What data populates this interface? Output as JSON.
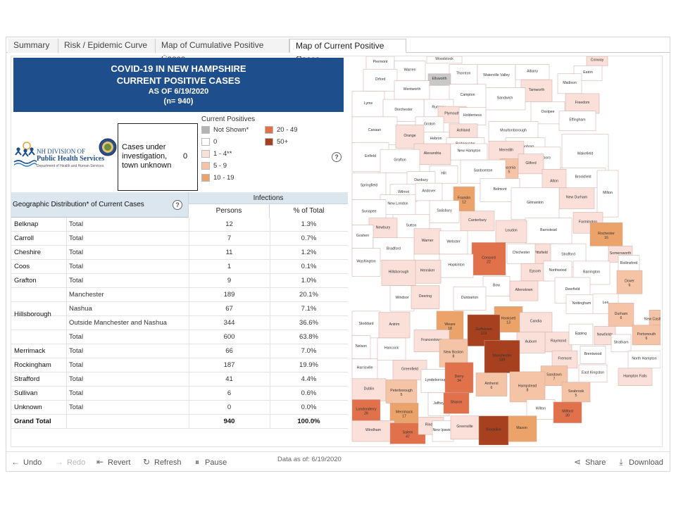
{
  "tabs": [
    "Summary",
    "Risk / Epidemic Curve",
    "Map of Cumulative Positive Cases",
    "Map of Current Positive Cases"
  ],
  "active_tab": 3,
  "title": {
    "line1": "COVID-19 IN NEW HAMPSHIRE",
    "line2": "CURRENT POSITIVE CASES",
    "line3": "AS OF 6/19/2020",
    "line4": "(n= 940)"
  },
  "logo": {
    "line1": "NH DIVISION OF",
    "line2": "Public Health Services",
    "line3": "Department of Health and Human Services"
  },
  "unknown_box": {
    "label": "Cases under investigation, town unknown",
    "value": "0"
  },
  "legend": {
    "title": "Current Positives",
    "items": [
      {
        "label": "Not Shown*",
        "color": "#b3b3b3"
      },
      {
        "label": "0",
        "color": "#ffffff"
      },
      {
        "label": "1 - 4**",
        "color": "#fbe0da"
      },
      {
        "label": "5 - 9",
        "color": "#f5c4a7"
      },
      {
        "label": "10 - 19",
        "color": "#eba36a"
      },
      {
        "label": "20 - 49",
        "color": "#e0714b"
      },
      {
        "label": "50+",
        "color": "#a6401e"
      }
    ]
  },
  "table": {
    "group_header": "Infections",
    "geo_header": "Geographic Distribution* of Current Cases",
    "col_persons": "Persons",
    "col_pct": "% of Total",
    "rows": [
      {
        "county": "Belknap",
        "sub": "Total",
        "persons": "12",
        "pct": "1.3%"
      },
      {
        "county": "Carroll",
        "sub": "Total",
        "persons": "7",
        "pct": "0.7%"
      },
      {
        "county": "Cheshire",
        "sub": "Total",
        "persons": "11",
        "pct": "1.2%"
      },
      {
        "county": "Coos",
        "sub": "Total",
        "persons": "1",
        "pct": "0.1%"
      },
      {
        "county": "Grafton",
        "sub": "Total",
        "persons": "9",
        "pct": "1.0%"
      },
      {
        "county": "",
        "sub": "Manchester",
        "persons": "189",
        "pct": "20.1%"
      },
      {
        "county": "",
        "sub": "Nashua",
        "persons": "67",
        "pct": "7.1%"
      },
      {
        "county": "",
        "sub": "Outside Manchester and Nashua",
        "persons": "344",
        "pct": "36.6%"
      },
      {
        "county": "",
        "sub": "Total",
        "persons": "600",
        "pct": "63.8%"
      },
      {
        "county": "Merrimack",
        "sub": "Total",
        "persons": "66",
        "pct": "7.0%"
      },
      {
        "county": "Rockingham",
        "sub": "Total",
        "persons": "187",
        "pct": "19.9%"
      },
      {
        "county": "Strafford",
        "sub": "Total",
        "persons": "41",
        "pct": "4.4%"
      },
      {
        "county": "Sullivan",
        "sub": "Total",
        "persons": "6",
        "pct": "0.6%"
      },
      {
        "county": "Unknown",
        "sub": "Total",
        "persons": "0",
        "pct": "0.0%"
      },
      {
        "county": "Grand Total",
        "sub": "",
        "persons": "940",
        "pct": "100.0%"
      }
    ],
    "hillsborough_label": "Hillsborough"
  },
  "data_as_of": "Data as of: 6/19/2020",
  "map": {
    "towns": [
      {
        "name": "Woodstock",
        "cases": ""
      },
      {
        "name": "Conway",
        "cases": ""
      },
      {
        "name": "Piermont",
        "cases": ""
      },
      {
        "name": "Warren",
        "cases": ""
      },
      {
        "name": "Thornton",
        "cases": ""
      },
      {
        "name": "Waterville Valley",
        "cases": ""
      },
      {
        "name": "Albany",
        "cases": ""
      },
      {
        "name": "Eaton",
        "cases": ""
      },
      {
        "name": "Orford",
        "cases": ""
      },
      {
        "name": "Ellsworth",
        "cases": ""
      },
      {
        "name": "Madison",
        "cases": ""
      },
      {
        "name": "Wentworth",
        "cases": ""
      },
      {
        "name": "Tamworth",
        "cases": ""
      },
      {
        "name": "Sandwich",
        "cases": ""
      },
      {
        "name": "Campton",
        "cases": ""
      },
      {
        "name": "Freedom",
        "cases": ""
      },
      {
        "name": "Rumney",
        "cases": ""
      },
      {
        "name": "Lyme",
        "cases": ""
      },
      {
        "name": "Dorchester",
        "cases": ""
      },
      {
        "name": "Plymouth",
        "cases": ""
      },
      {
        "name": "Holderness",
        "cases": ""
      },
      {
        "name": "Ossipee",
        "cases": ""
      },
      {
        "name": "Effingham",
        "cases": ""
      },
      {
        "name": "Groton",
        "cases": ""
      },
      {
        "name": "Ashland",
        "cases": ""
      },
      {
        "name": "Moultonborough",
        "cases": ""
      },
      {
        "name": "Hebron",
        "cases": ""
      },
      {
        "name": "Canaan",
        "cases": ""
      },
      {
        "name": "Orange",
        "cases": ""
      },
      {
        "name": "Bridgewater",
        "cases": ""
      },
      {
        "name": "Tuftonboro",
        "cases": ""
      },
      {
        "name": "Alexandria",
        "cases": ""
      },
      {
        "name": "New Hampton",
        "cases": ""
      },
      {
        "name": "Meredith",
        "cases": ""
      },
      {
        "name": "Wolfeboro",
        "cases": ""
      },
      {
        "name": "Wakefield",
        "cases": ""
      },
      {
        "name": "Enfield",
        "cases": ""
      },
      {
        "name": "Grafton",
        "cases": ""
      },
      {
        "name": "Laconia",
        "cases": "5"
      },
      {
        "name": "Gilford",
        "cases": ""
      },
      {
        "name": "Brookfield",
        "cases": ""
      },
      {
        "name": "Hill",
        "cases": ""
      },
      {
        "name": "Sanbornton",
        "cases": ""
      },
      {
        "name": "Danbury",
        "cases": ""
      },
      {
        "name": "Alton",
        "cases": ""
      },
      {
        "name": "Springfield",
        "cases": ""
      },
      {
        "name": "Belmont",
        "cases": ""
      },
      {
        "name": "New Durham",
        "cases": ""
      },
      {
        "name": "Wilmot",
        "cases": ""
      },
      {
        "name": "Andover",
        "cases": ""
      },
      {
        "name": "Franklin",
        "cases": "12"
      },
      {
        "name": "Milton",
        "cases": ""
      },
      {
        "name": "Gilmanton",
        "cases": ""
      },
      {
        "name": "New London",
        "cases": ""
      },
      {
        "name": "Sunapee",
        "cases": ""
      },
      {
        "name": "Salisbury",
        "cases": ""
      },
      {
        "name": "Farmington",
        "cases": ""
      },
      {
        "name": "Barnstead",
        "cases": ""
      },
      {
        "name": "Canterbury",
        "cases": ""
      },
      {
        "name": "Sutton",
        "cases": ""
      },
      {
        "name": "Newbury",
        "cases": ""
      },
      {
        "name": "Loudon",
        "cases": ""
      },
      {
        "name": "Rochester",
        "cases": "16"
      },
      {
        "name": "Goshen",
        "cases": ""
      },
      {
        "name": "Warner",
        "cases": ""
      },
      {
        "name": "Webster",
        "cases": ""
      },
      {
        "name": "Pittsfield",
        "cases": ""
      },
      {
        "name": "Strafford",
        "cases": ""
      },
      {
        "name": "Chichester",
        "cases": ""
      },
      {
        "name": "Somersworth",
        "cases": ""
      },
      {
        "name": "Bradford",
        "cases": ""
      },
      {
        "name": "Rollinsford",
        "cases": ""
      },
      {
        "name": "Concord",
        "cases": "22"
      },
      {
        "name": "Epsom",
        "cases": ""
      },
      {
        "name": "Northwood",
        "cases": ""
      },
      {
        "name": "Barrington",
        "cases": ""
      },
      {
        "name": "Washington",
        "cases": ""
      },
      {
        "name": "Hopkinton",
        "cases": ""
      },
      {
        "name": "Henniker",
        "cases": ""
      },
      {
        "name": "Dover",
        "cases": "6"
      },
      {
        "name": "Hillsborough",
        "cases": ""
      },
      {
        "name": "Bow",
        "cases": ""
      },
      {
        "name": "Allenstown",
        "cases": ""
      },
      {
        "name": "Deerfield",
        "cases": ""
      },
      {
        "name": "Nottingham",
        "cases": ""
      },
      {
        "name": "Lee",
        "cases": ""
      },
      {
        "name": "Durham",
        "cases": "6"
      },
      {
        "name": "Windsor",
        "cases": ""
      },
      {
        "name": "Dunbarton",
        "cases": ""
      },
      {
        "name": "Deering",
        "cases": ""
      },
      {
        "name": "Weare",
        "cases": "18"
      },
      {
        "name": "Hooksett",
        "cases": "13"
      },
      {
        "name": "Candia",
        "cases": ""
      },
      {
        "name": "New Castle",
        "cases": ""
      },
      {
        "name": "Portsmouth",
        "cases": "6"
      },
      {
        "name": "Stoddard",
        "cases": ""
      },
      {
        "name": "Antrim",
        "cases": ""
      },
      {
        "name": "Goffstown",
        "cases": "123"
      },
      {
        "name": "Raymond",
        "cases": ""
      },
      {
        "name": "Epping",
        "cases": ""
      },
      {
        "name": "Newfields",
        "cases": ""
      },
      {
        "name": "Stratham",
        "cases": ""
      },
      {
        "name": "Francestown",
        "cases": ""
      },
      {
        "name": "Auburn",
        "cases": ""
      },
      {
        "name": "Nelson",
        "cases": ""
      },
      {
        "name": "Hancock",
        "cases": ""
      },
      {
        "name": "New Boston",
        "cases": "8"
      },
      {
        "name": "Manchester",
        "cases": "189"
      },
      {
        "name": "Fremont",
        "cases": ""
      },
      {
        "name": "Brentwood",
        "cases": ""
      },
      {
        "name": "North Hampton",
        "cases": ""
      },
      {
        "name": "Harrisville",
        "cases": ""
      },
      {
        "name": "Greenfield",
        "cases": ""
      },
      {
        "name": "Sandown",
        "cases": "7"
      },
      {
        "name": "East Kingston",
        "cases": ""
      },
      {
        "name": "Hampton Falls",
        "cases": ""
      },
      {
        "name": "Dublin",
        "cases": ""
      },
      {
        "name": "Peterborough",
        "cases": "5"
      },
      {
        "name": "Lyndeborough",
        "cases": ""
      },
      {
        "name": "Derry",
        "cases": "34"
      },
      {
        "name": "Hampstead",
        "cases": "8"
      },
      {
        "name": "Seabrook",
        "cases": "5"
      },
      {
        "name": "Amherst",
        "cases": "6"
      },
      {
        "name": "Londonderry",
        "cases": "26"
      },
      {
        "name": "Merrimack",
        "cases": "17"
      },
      {
        "name": "Jaffrey",
        "cases": ""
      },
      {
        "name": "Sharon",
        "cases": ""
      },
      {
        "name": "Wilton",
        "cases": ""
      },
      {
        "name": "Milford",
        "cases": "30"
      },
      {
        "name": "Windham",
        "cases": ""
      },
      {
        "name": "Salem",
        "cases": "47"
      },
      {
        "name": "Rindge",
        "cases": ""
      },
      {
        "name": "New Ipswich",
        "cases": ""
      },
      {
        "name": "Greenville",
        "cases": ""
      },
      {
        "name": "Mason",
        "cases": ""
      },
      {
        "name": "Brookline",
        "cases": ""
      },
      {
        "name": "Hudson",
        "cases": "11"
      },
      {
        "name": "Nashua",
        "cases": "67"
      }
    ]
  },
  "toolbar": {
    "undo": "Undo",
    "redo": "Redo",
    "revert": "Revert",
    "refresh": "Refresh",
    "pause": "Pause",
    "share": "Share",
    "download": "Download"
  }
}
